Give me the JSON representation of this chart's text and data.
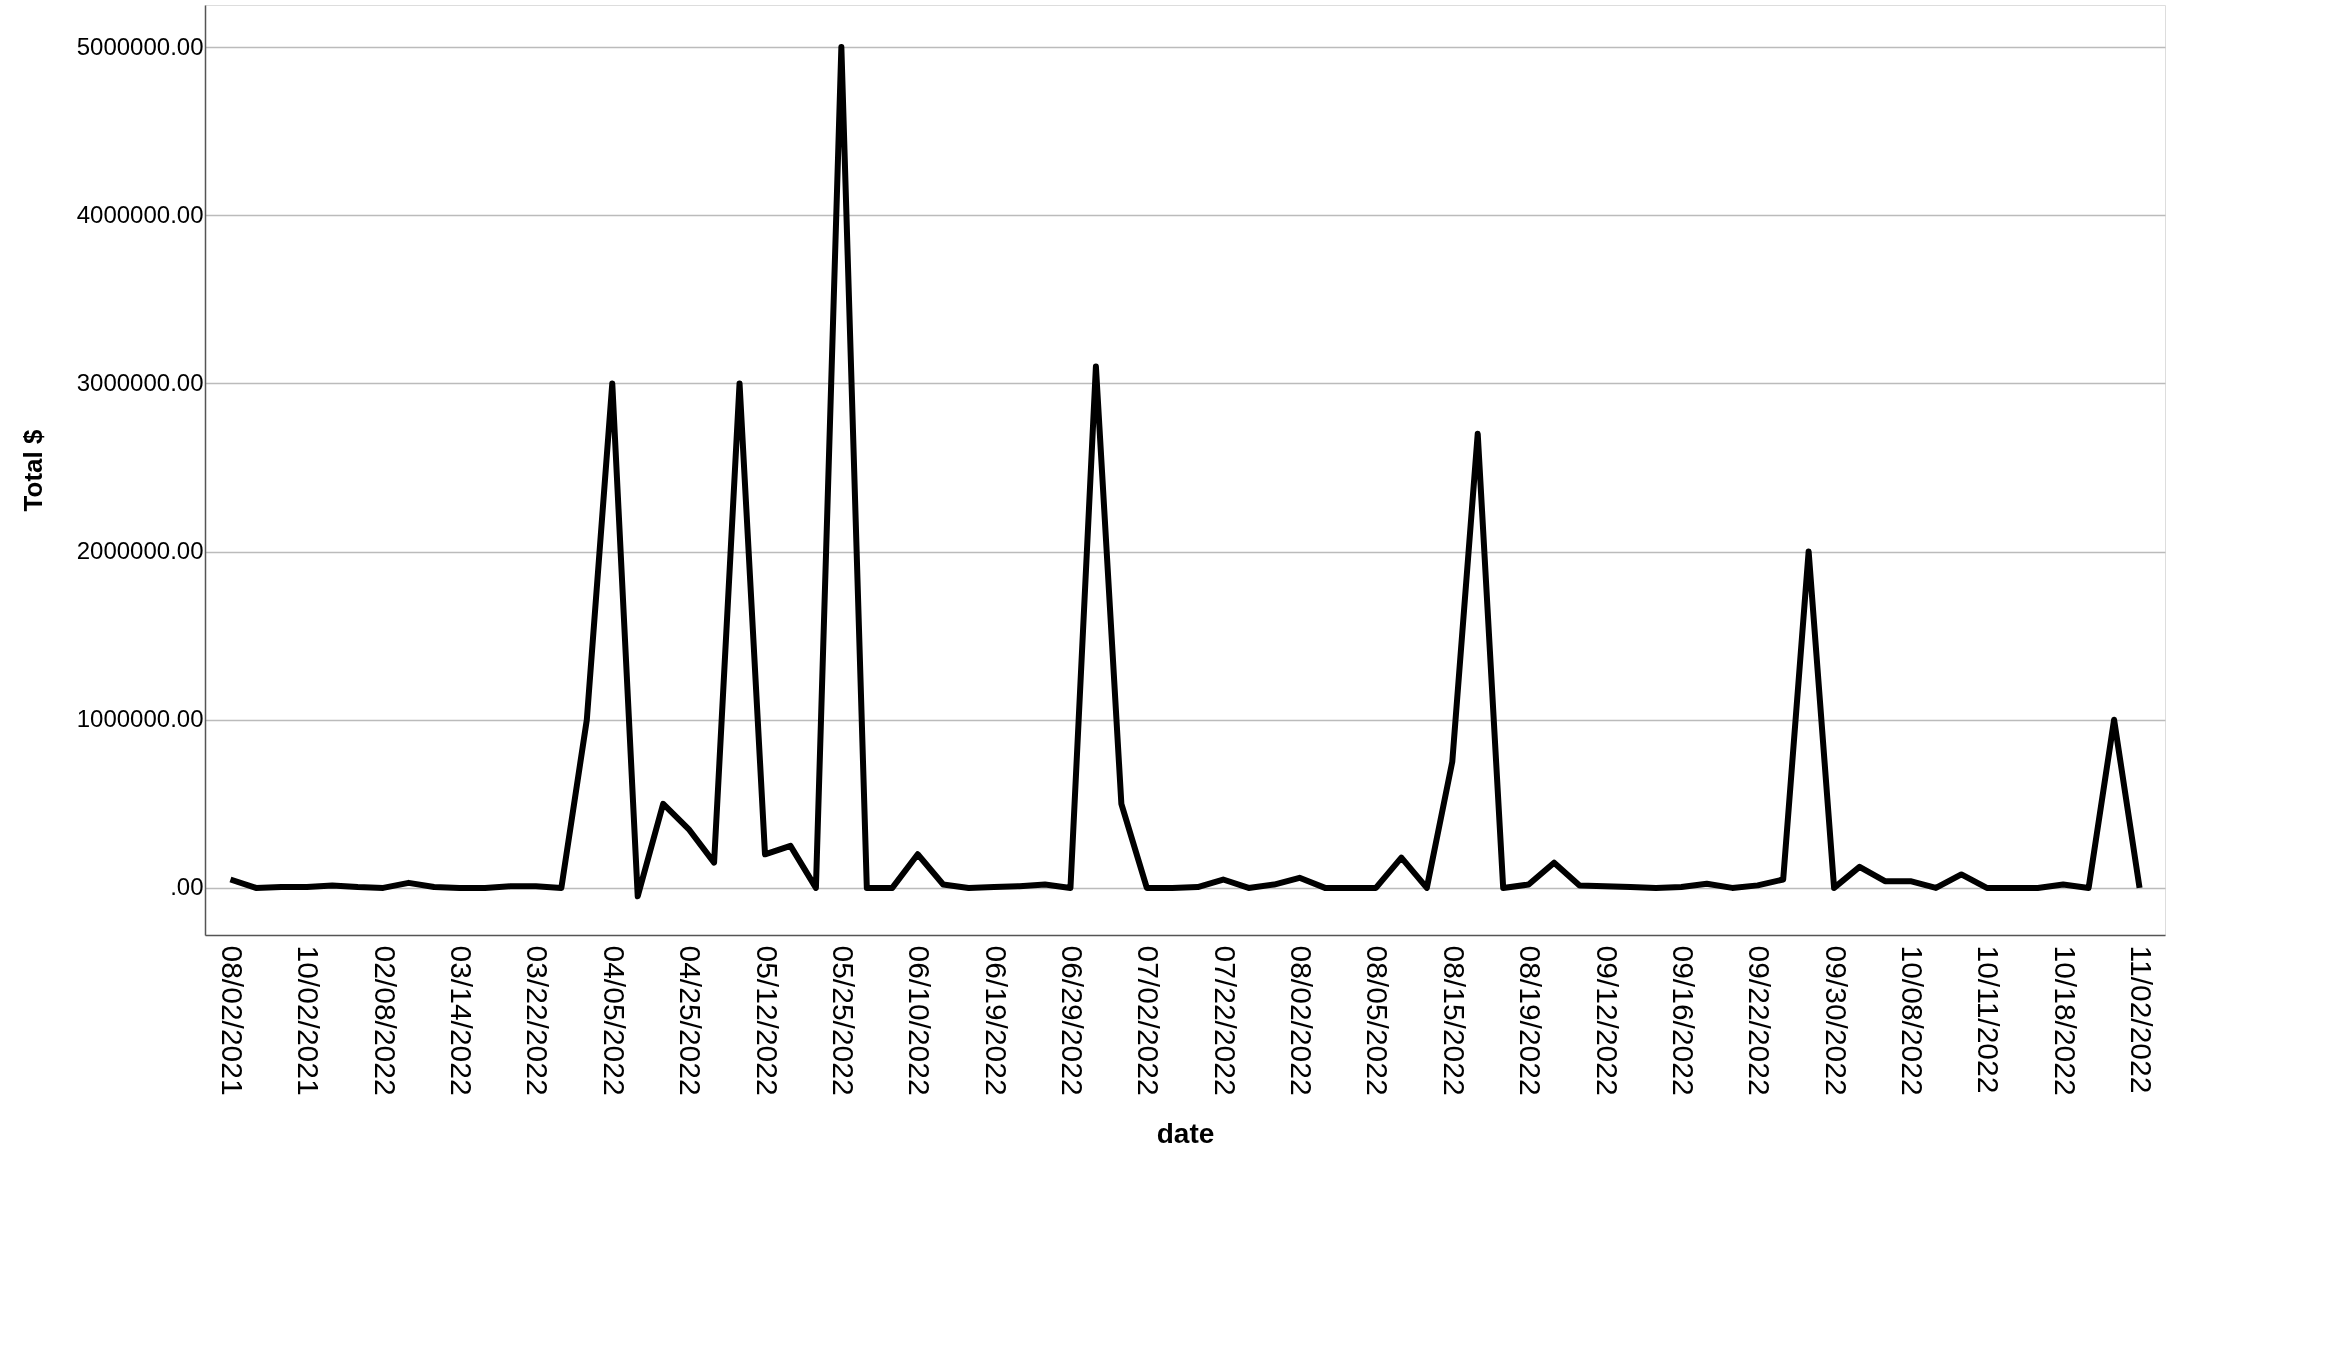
{
  "chart_data": {
    "type": "line",
    "xlabel": "date",
    "ylabel": "Total $",
    "categories": [
      "08/02/2021",
      null,
      null,
      "10/02/2021",
      null,
      null,
      "02/08/2022",
      null,
      null,
      "03/14/2022",
      null,
      null,
      "03/22/2022",
      null,
      null,
      "04/05/2022",
      null,
      null,
      "04/25/2022",
      null,
      null,
      "05/12/2022",
      null,
      null,
      "05/25/2022",
      null,
      null,
      "06/10/2022",
      null,
      null,
      "06/19/2022",
      null,
      null,
      "06/29/2022",
      null,
      null,
      "07/02/2022",
      null,
      null,
      "07/22/2022",
      null,
      null,
      "08/02/2022",
      null,
      null,
      "08/05/2022",
      null,
      null,
      "08/15/2022",
      null,
      null,
      "08/19/2022",
      null,
      null,
      "09/12/2022",
      null,
      null,
      "09/16/2022",
      null,
      null,
      "09/22/2022",
      null,
      null,
      "09/30/2022",
      null,
      null,
      "10/08/2022",
      null,
      null,
      "10/11/2022",
      null,
      null,
      "10/18/2022",
      null,
      null,
      "11/02/2022"
    ],
    "series": [
      {
        "color": "#000000",
        "values": [
          50000,
          0,
          5000,
          5000,
          15000,
          5000,
          0,
          30000,
          5000,
          0,
          0,
          10000,
          10000,
          0,
          1000000,
          3000000,
          -50000,
          500000,
          350000,
          150000,
          3000000,
          200000,
          250000,
          0,
          5000000,
          0,
          0,
          200000,
          20000,
          0,
          5000,
          10000,
          20000,
          0,
          3100000,
          500000,
          0,
          0,
          5000,
          50000,
          0,
          20000,
          60000,
          0,
          0,
          0,
          180000,
          0,
          750000,
          2700000,
          0,
          20000,
          150000,
          15000,
          10000,
          5000,
          0,
          5000,
          25000,
          0,
          15000,
          50000,
          2000000,
          0,
          125000,
          40000,
          40000,
          0,
          80000,
          0,
          0,
          0,
          20000,
          0,
          1000000,
          0
        ]
      }
    ],
    "ylim": [
      -280000,
      5250000
    ],
    "yticks": [
      {
        "value": 0,
        "label": ".00"
      },
      {
        "value": 1000000,
        "label": "1000000.00"
      },
      {
        "value": 2000000,
        "label": "2000000.00"
      },
      {
        "value": 3000000,
        "label": "3000000.00"
      },
      {
        "value": 4000000,
        "label": "4000000.00"
      },
      {
        "value": 5000000,
        "label": "5000000.00"
      }
    ],
    "grid": "y",
    "marker": "none",
    "line_style": "solid",
    "legend": false
  }
}
